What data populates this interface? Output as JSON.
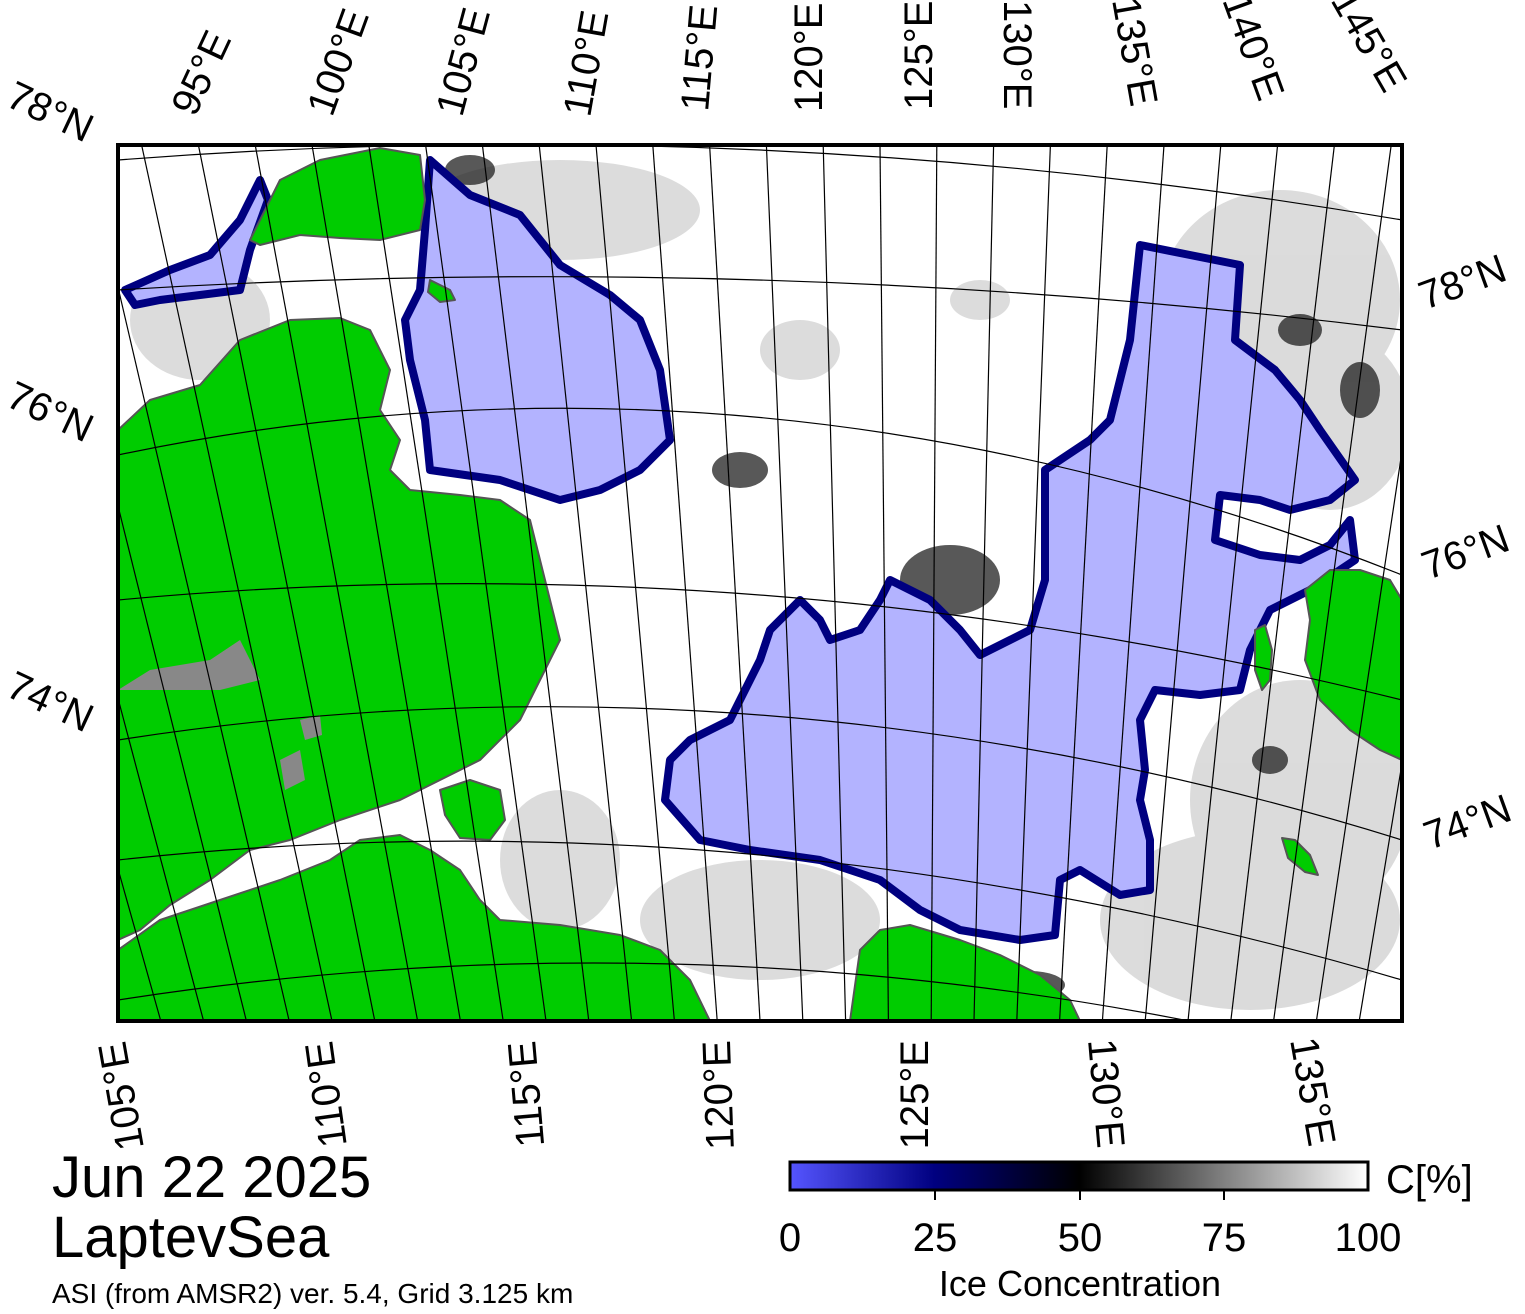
{
  "map": {
    "title_date": "Jun 22 2025",
    "region_name": "LaptevSea",
    "source_note": "ASI (from AMSR2) ver. 5.4,  Grid 3.125 km",
    "top_lon_labels": [
      "95°E",
      "100°E",
      "105°E",
      "110°E",
      "115°E",
      "120°E",
      "125°E",
      "130°E",
      "135°E",
      "140°E",
      "145°E"
    ],
    "bottom_lon_labels": [
      "105°E",
      "110°E",
      "115°E",
      "120°E",
      "125°E",
      "130°E",
      "135°E"
    ],
    "left_lat_labels": [
      "78°N",
      "76°N",
      "74°N"
    ],
    "right_lat_labels": [
      "78°N",
      "76°N",
      "74°N"
    ],
    "colors": {
      "land": "#00cc00",
      "open_water": "#b3b3ff",
      "ice_high": "#ffffff",
      "ice_mid": "#000000",
      "ice_low": "#000080",
      "ice_zero": "#5555ff",
      "land_mask": "#888888"
    }
  },
  "colorbar": {
    "unit": "C[%]",
    "title": "Ice Concentration",
    "ticks": [
      "0",
      "25",
      "50",
      "75",
      "100"
    ],
    "range": [
      0,
      100
    ]
  }
}
